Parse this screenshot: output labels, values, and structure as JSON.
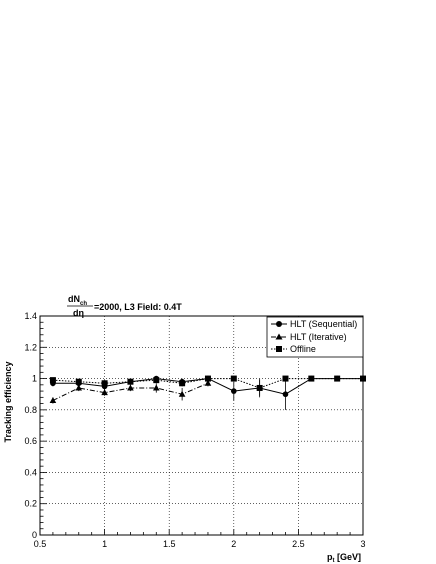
{
  "chart_data": {
    "type": "scatter",
    "title": {
      "numerator": "dN",
      "numerator_sub": "ch",
      "denominator": "dη",
      "rest": "=2000,   L3 Field: 0.4T"
    },
    "xlabel": "p",
    "xlabel_sub": "t",
    "xlabel_unit": " [GeV]",
    "ylabel": "Tracking efficiency",
    "xlim": [
      0.5,
      3.0
    ],
    "ylim": [
      0,
      1.4
    ],
    "x_ticks": [
      0.5,
      1,
      1.5,
      2,
      2.5,
      3
    ],
    "x_tick_labels": [
      "0.5",
      "1",
      "1.5",
      "2",
      "2.5",
      "3"
    ],
    "y_ticks": [
      0,
      0.2,
      0.4,
      0.6,
      0.8,
      1,
      1.2,
      1.4
    ],
    "y_tick_labels": [
      "0",
      "0.2",
      "0.4",
      "0.6",
      "0.8",
      "1",
      "1.2",
      "1.4"
    ],
    "grid": true,
    "legend_position": "top-right",
    "series": [
      {
        "name": "HLT (Sequential)",
        "marker": "circle",
        "line": "solid",
        "x": [
          0.6,
          0.8,
          1.0,
          1.2,
          1.4,
          1.6,
          1.8,
          2.0,
          2.2,
          2.4,
          2.6,
          2.8,
          3.0
        ],
        "y": [
          0.97,
          0.97,
          0.95,
          0.98,
          1.0,
          0.98,
          1.0,
          0.92,
          0.94,
          0.9,
          1.0,
          1.0,
          1.0
        ],
        "err": [
          0.02,
          0.02,
          0.03,
          0.02,
          0.01,
          0.02,
          0.01,
          0.06,
          0.06,
          0.1,
          0.0,
          0.0,
          0.0
        ]
      },
      {
        "name": "HLT (Iterative)",
        "marker": "triangle",
        "line": "dash-dot",
        "x": [
          0.6,
          0.8,
          1.0,
          1.2,
          1.4,
          1.6,
          1.8
        ],
        "y": [
          0.86,
          0.94,
          0.91,
          0.94,
          0.94,
          0.9,
          0.97
        ],
        "err": [
          0.02,
          0.02,
          0.02,
          0.02,
          0.03,
          0.04,
          0.02
        ]
      },
      {
        "name": "Offline",
        "marker": "square",
        "line": "dotted",
        "x": [
          0.6,
          0.8,
          1.0,
          1.2,
          1.4,
          1.6,
          1.8,
          2.0,
          2.2,
          2.4,
          2.6,
          2.8,
          3.0
        ],
        "y": [
          0.99,
          0.98,
          0.97,
          0.98,
          0.99,
          0.97,
          1.0,
          1.0,
          0.94,
          1.0,
          1.0,
          1.0,
          1.0
        ],
        "err": [
          0.01,
          0.01,
          0.02,
          0.01,
          0.01,
          0.02,
          0.01,
          0.0,
          0.05,
          0.0,
          0.0,
          0.0,
          0.0
        ]
      }
    ]
  }
}
